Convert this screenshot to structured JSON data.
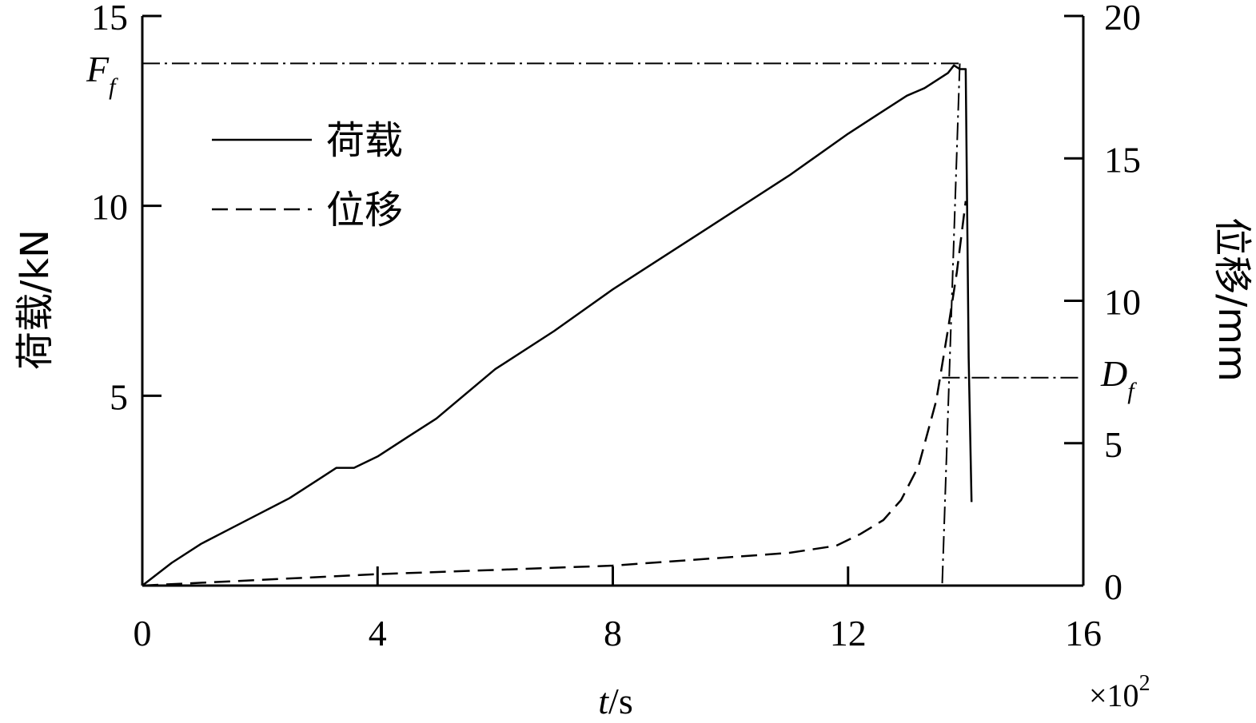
{
  "chart_data": {
    "type": "line",
    "xlabel_italic": "t",
    "xlabel_unit": "/s",
    "x_multiplier_base": "×10",
    "x_multiplier_exp": "2",
    "ylabel_left": "荷载/kN",
    "ylabel_right": "位移/mm",
    "xlim": [
      0,
      16
    ],
    "ylim_left": [
      0,
      15
    ],
    "ylim_right": [
      0,
      20
    ],
    "x_ticks": [
      0,
      4,
      8,
      12,
      16
    ],
    "y_left_ticks": [
      5,
      10,
      15
    ],
    "y_right_ticks": [
      0,
      5,
      10,
      15,
      20
    ],
    "x_tick_labels": [
      "0",
      "4",
      "8",
      "12",
      "16"
    ],
    "y_left_tick_labels": [
      "5",
      "10",
      "15"
    ],
    "y_right_tick_labels": [
      "0",
      "5",
      "10",
      "15",
      "20"
    ],
    "legend_position": "upper-left",
    "series": [
      {
        "name": "荷载",
        "axis": "left",
        "style": "solid",
        "x": [
          0,
          0.5,
          1,
          1.5,
          2,
          2.5,
          3,
          3.3,
          3.6,
          4,
          4.5,
          5,
          6,
          7,
          8,
          9,
          10,
          11,
          12,
          12.5,
          13,
          13.3,
          13.5,
          13.7,
          13.8,
          13.9,
          14.0,
          14.05,
          14.1
        ],
        "values": [
          0,
          0.6,
          1.1,
          1.5,
          1.9,
          2.3,
          2.8,
          3.1,
          3.1,
          3.4,
          3.9,
          4.4,
          5.7,
          6.7,
          7.8,
          8.8,
          9.8,
          10.8,
          11.9,
          12.4,
          12.9,
          13.1,
          13.3,
          13.5,
          13.7,
          13.6,
          13.6,
          6.0,
          2.2
        ]
      },
      {
        "name": "位移",
        "axis": "right",
        "style": "dashed",
        "x": [
          0,
          2,
          4,
          6,
          8,
          10,
          11,
          11.8,
          12.2,
          12.6,
          12.9,
          13.2,
          13.5,
          13.7,
          13.85,
          14.0
        ],
        "values": [
          0,
          0.2,
          0.4,
          0.55,
          0.7,
          1.0,
          1.15,
          1.4,
          1.8,
          2.3,
          3.0,
          4.2,
          6.5,
          9.0,
          11.0,
          13.5
        ]
      }
    ],
    "annotations": [
      {
        "main": "F",
        "sub": "f",
        "axis": "left",
        "value": 13.75,
        "x_ref": 13.9
      },
      {
        "main": "D",
        "sub": "f",
        "axis": "right",
        "value": 7.3,
        "x_ref": 13.6
      }
    ]
  }
}
